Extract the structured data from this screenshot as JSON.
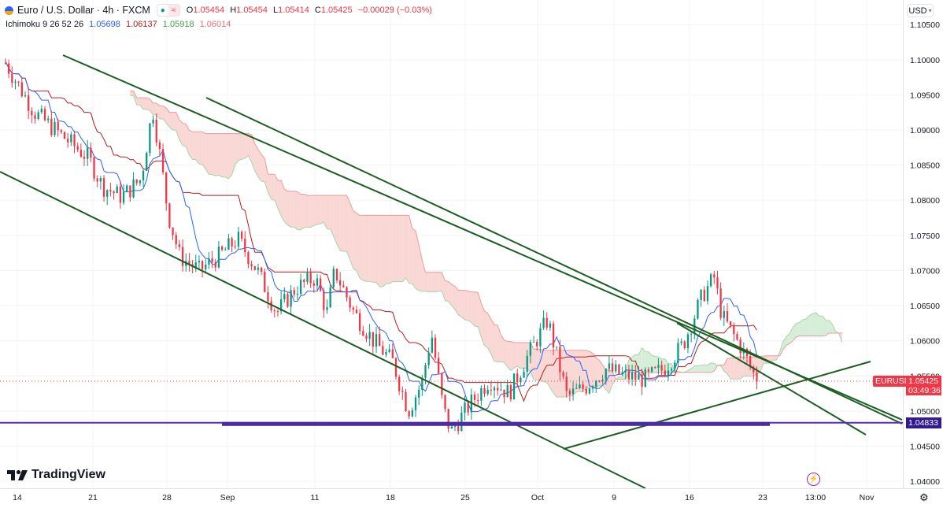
{
  "header": {
    "symbol": "Euro / U.S. Dollar · 4h · FXCM",
    "ohlc": [
      {
        "key": "O",
        "value": "1.05454"
      },
      {
        "key": "H",
        "value": "1.05454"
      },
      {
        "key": "L",
        "value": "1.05414"
      },
      {
        "key": "C",
        "value": "1.05425"
      }
    ],
    "change": "−0.00029 (−0.03%)",
    "badge_icons": [
      "market-status-icon",
      "compare-icon"
    ]
  },
  "indicator": {
    "name": "Ichimoku 9 26 52 26",
    "values": [
      "1.05698",
      "1.06137",
      "1.05918",
      "1.06014"
    ]
  },
  "currency_button": "USD",
  "price_axis": {
    "ticks": [
      "1.10500",
      "1.10000",
      "1.09500",
      "1.09000",
      "1.08500",
      "1.08000",
      "1.07500",
      "1.07000",
      "1.06500",
      "1.06000",
      "1.05500",
      "1.05000",
      "1.04500",
      "1.04000"
    ]
  },
  "time_axis": {
    "ticks": [
      "14",
      "21",
      "28",
      "Sep",
      "11",
      "18",
      "25",
      "Oct",
      "9",
      "16",
      "23",
      "13:00",
      "Nov"
    ]
  },
  "last_price": {
    "symbol": "EURUSD",
    "price": "1.05425",
    "countdown": "03:49:36"
  },
  "support_level": "1.04833",
  "logo": "TradingView",
  "colors": {
    "up": "#089981",
    "down": "#f23645",
    "trendline": "#1b5e20",
    "level": "#5b2bb3",
    "tenkan": "#2962ff",
    "kijun": "#b71c1c",
    "cloud_bear": "#f8d7d4",
    "cloud_bull": "#d6eed8"
  },
  "chart_data": {
    "type": "candlestick",
    "title": "Euro / U.S. Dollar · 4h · FXCM",
    "ylim": [
      1.039,
      1.1085
    ],
    "x": [
      "14",
      "21",
      "28",
      "Sep",
      "11",
      "18",
      "25",
      "Oct",
      "9",
      "16",
      "23",
      "Nov"
    ],
    "close_path": [
      [
        0,
        1.0995
      ],
      [
        1.5,
        1.0925
      ],
      [
        3,
        1.089
      ],
      [
        4.3,
        1.086
      ],
      [
        5,
        1.082
      ],
      [
        6,
        1.0805
      ],
      [
        7,
        1.083
      ],
      [
        7.6,
        1.093
      ],
      [
        8,
        1.086
      ],
      [
        8.4,
        1.078
      ],
      [
        9,
        1.072
      ],
      [
        10,
        1.07
      ],
      [
        11,
        1.072
      ],
      [
        12,
        1.0745
      ],
      [
        13,
        1.07
      ],
      [
        14,
        1.064
      ],
      [
        15,
        1.0675
      ],
      [
        16,
        1.069
      ],
      [
        16.6,
        1.064
      ],
      [
        17,
        1.07
      ],
      [
        18,
        1.064
      ],
      [
        19,
        1.06
      ],
      [
        20,
        1.057
      ],
      [
        20.8,
        1.05
      ],
      [
        21.5,
        1.054
      ],
      [
        22,
        1.061
      ],
      [
        22.6,
        1.0505
      ],
      [
        23,
        1.047
      ],
      [
        24,
        1.051
      ],
      [
        25,
        1.0545
      ],
      [
        26,
        1.0525
      ],
      [
        27,
        1.058
      ],
      [
        28,
        1.063
      ],
      [
        29,
        1.052
      ],
      [
        30,
        1.0535
      ],
      [
        31,
        1.056
      ],
      [
        32,
        1.055
      ],
      [
        33,
        1.0545
      ],
      [
        34,
        1.056
      ],
      [
        35,
        1.0595
      ],
      [
        36,
        1.0665
      ],
      [
        36.6,
        1.069
      ],
      [
        37,
        1.0635
      ],
      [
        38,
        1.059
      ],
      [
        38.8,
        1.0543
      ]
    ],
    "support_line": 1.04833,
    "last_price": 1.05425
  }
}
